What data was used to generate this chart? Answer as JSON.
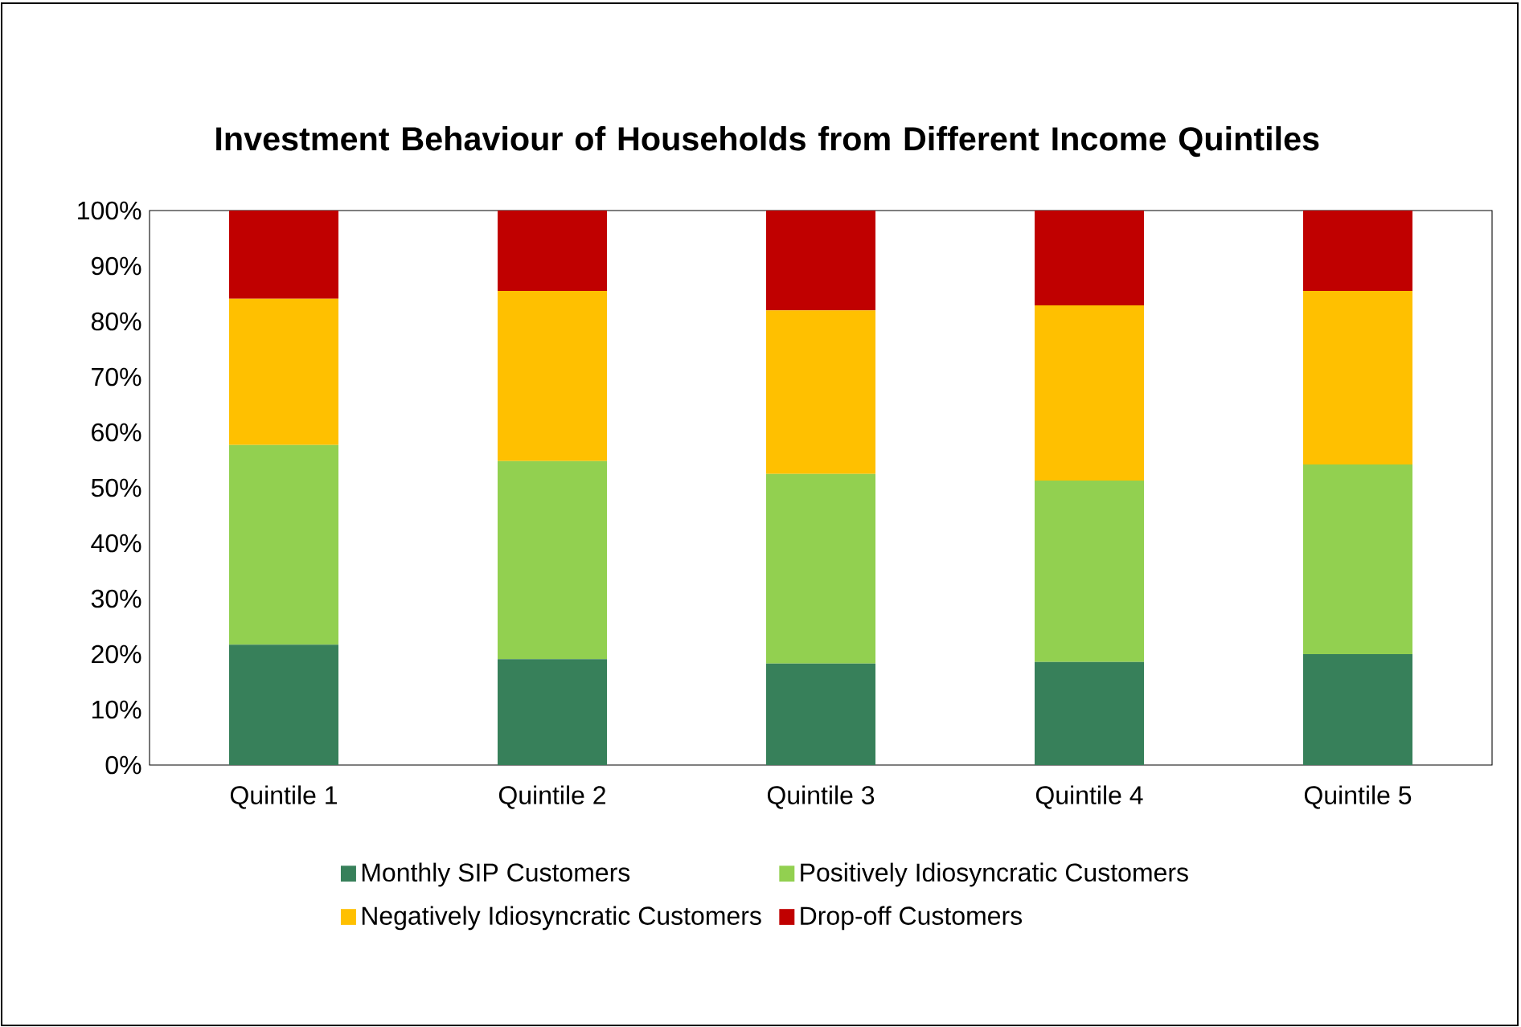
{
  "chart_data": {
    "type": "bar",
    "stacked": true,
    "title": "Investment Behaviour of Households from Different Income Quintiles",
    "categories": [
      "Quintile 1",
      "Quintile 2",
      "Quintile 3",
      "Quintile 4",
      "Quintile 5"
    ],
    "series": [
      {
        "name": "Monthly SIP Customers",
        "color": "#37805a",
        "values": [
          21.7,
          19.1,
          18.3,
          18.6,
          20.0
        ]
      },
      {
        "name": "Positively Idiosyncratic Customers",
        "color": "#92d050",
        "values": [
          36.0,
          35.7,
          34.2,
          32.7,
          34.2
        ]
      },
      {
        "name": "Negatively Idiosyncratic Customers",
        "color": "#ffc000",
        "values": [
          26.4,
          30.7,
          29.5,
          31.6,
          31.3
        ]
      },
      {
        "name": "Drop-off Customers",
        "color": "#c00000",
        "values": [
          15.9,
          14.5,
          18.0,
          17.1,
          14.5
        ]
      }
    ],
    "ylim": [
      0,
      100
    ],
    "yticks": [
      {
        "value": 0,
        "label": "0%"
      },
      {
        "value": 10,
        "label": "10%"
      },
      {
        "value": 20,
        "label": "20%"
      },
      {
        "value": 30,
        "label": "30%"
      },
      {
        "value": 40,
        "label": "40%"
      },
      {
        "value": 50,
        "label": "50%"
      },
      {
        "value": 60,
        "label": "60%"
      },
      {
        "value": 70,
        "label": "70%"
      },
      {
        "value": 80,
        "label": "80%"
      },
      {
        "value": 90,
        "label": "90%"
      },
      {
        "value": 100,
        "label": "100%"
      }
    ],
    "grid": false,
    "legend": "bottom"
  }
}
